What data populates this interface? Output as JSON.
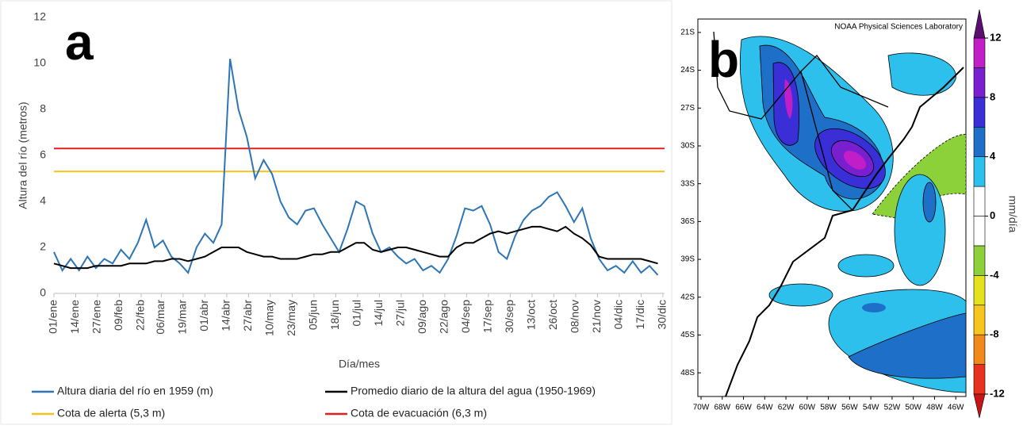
{
  "chart_data": [
    {
      "type": "line",
      "panel_label": "a",
      "x_label": "Día/mes",
      "y_label": "Altura del río (metros)",
      "xlim": [
        1,
        365
      ],
      "ylim": [
        0,
        12
      ],
      "yticks": [
        0,
        2,
        4,
        6,
        8,
        10,
        12
      ],
      "grid": false,
      "xticks": [
        {
          "value": 1,
          "label": "01/ene"
        },
        {
          "value": 14,
          "label": "14/ene"
        },
        {
          "value": 27,
          "label": "27/ene"
        },
        {
          "value": 40,
          "label": "09/feb"
        },
        {
          "value": 53,
          "label": "22/feb"
        },
        {
          "value": 65,
          "label": "06/mar"
        },
        {
          "value": 78,
          "label": "19/mar"
        },
        {
          "value": 91,
          "label": "01/abr"
        },
        {
          "value": 104,
          "label": "14/abr"
        },
        {
          "value": 117,
          "label": "27/abr"
        },
        {
          "value": 130,
          "label": "10/may"
        },
        {
          "value": 143,
          "label": "23/may"
        },
        {
          "value": 156,
          "label": "05/jun"
        },
        {
          "value": 169,
          "label": "18/jun"
        },
        {
          "value": 182,
          "label": "01/jul"
        },
        {
          "value": 195,
          "label": "14/jul"
        },
        {
          "value": 208,
          "label": "27/jul"
        },
        {
          "value": 221,
          "label": "09/ago"
        },
        {
          "value": 234,
          "label": "22/ago"
        },
        {
          "value": 247,
          "label": "04/sep"
        },
        {
          "value": 260,
          "label": "17/sep"
        },
        {
          "value": 273,
          "label": "30/sep"
        },
        {
          "value": 286,
          "label": "13/oct"
        },
        {
          "value": 299,
          "label": "26/oct"
        },
        {
          "value": 312,
          "label": "08/nov"
        },
        {
          "value": 325,
          "label": "21/nov"
        },
        {
          "value": 338,
          "label": "04/dic"
        },
        {
          "value": 351,
          "label": "17/dic"
        },
        {
          "value": 364,
          "label": "30/dic"
        }
      ],
      "x": [
        1,
        6,
        11,
        16,
        21,
        26,
        31,
        36,
        41,
        46,
        51,
        56,
        61,
        66,
        71,
        76,
        81,
        86,
        91,
        96,
        101,
        106,
        111,
        116,
        121,
        126,
        131,
        136,
        141,
        146,
        151,
        156,
        161,
        166,
        171,
        176,
        181,
        186,
        191,
        196,
        201,
        206,
        211,
        216,
        221,
        226,
        231,
        236,
        241,
        246,
        251,
        256,
        261,
        266,
        271,
        276,
        281,
        286,
        291,
        296,
        301,
        306,
        311,
        316,
        321,
        326,
        331,
        336,
        341,
        346,
        351,
        356,
        361
      ],
      "series": [
        {
          "name": "Altura diaria del río en 1959 (m)",
          "color": "#2e75b6",
          "values": [
            1.8,
            1.0,
            1.5,
            1.0,
            1.6,
            1.1,
            1.5,
            1.3,
            1.9,
            1.5,
            2.2,
            3.2,
            2.0,
            2.3,
            1.6,
            1.3,
            0.9,
            2.0,
            2.6,
            2.2,
            3.0,
            10.2,
            8.0,
            6.8,
            5.0,
            5.8,
            5.2,
            4.0,
            3.3,
            3.0,
            3.6,
            3.7,
            3.0,
            2.4,
            1.8,
            2.8,
            4.0,
            3.8,
            2.6,
            1.8,
            2.0,
            1.6,
            1.3,
            1.5,
            1.0,
            1.2,
            0.9,
            1.5,
            2.5,
            3.7,
            3.6,
            3.8,
            3.0,
            1.8,
            1.5,
            2.5,
            3.2,
            3.6,
            3.8,
            4.2,
            4.4,
            3.8,
            3.1,
            3.7,
            2.4,
            1.5,
            1.0,
            1.2,
            0.9,
            1.4,
            0.9,
            1.2,
            0.8
          ]
        },
        {
          "name": "Promedio diario de la altura del agua (1950-1969)",
          "color": "#000000",
          "values": [
            1.3,
            1.2,
            1.1,
            1.1,
            1.1,
            1.2,
            1.2,
            1.2,
            1.2,
            1.3,
            1.3,
            1.3,
            1.4,
            1.4,
            1.5,
            1.5,
            1.4,
            1.5,
            1.6,
            1.8,
            2.0,
            2.0,
            2.0,
            1.8,
            1.7,
            1.6,
            1.6,
            1.5,
            1.5,
            1.5,
            1.6,
            1.7,
            1.7,
            1.8,
            1.8,
            2.0,
            2.2,
            2.2,
            1.9,
            1.8,
            1.9,
            2.0,
            2.0,
            1.9,
            1.8,
            1.7,
            1.6,
            1.6,
            2.0,
            2.2,
            2.2,
            2.4,
            2.6,
            2.7,
            2.6,
            2.7,
            2.8,
            2.9,
            2.9,
            2.8,
            2.7,
            2.9,
            2.6,
            2.4,
            2.1,
            1.6,
            1.5,
            1.5,
            1.5,
            1.5,
            1.5,
            1.4,
            1.3
          ]
        }
      ],
      "reference_lines": [
        {
          "name": "Cota de alerta (5,3 m)",
          "value": 5.3,
          "color": "#f2c31f"
        },
        {
          "name": "Cota de evacuación (6,3 m)",
          "value": 6.3,
          "color": "#e02020"
        }
      ]
    },
    {
      "type": "map",
      "panel_label": "b",
      "title": "NOAA Physical Sciences Laboratory",
      "xlim": [
        -70,
        -45
      ],
      "ylim": [
        -49.5,
        -20
      ],
      "xticks": [
        {
          "value": -70,
          "label": "70W"
        },
        {
          "value": -68,
          "label": "68W"
        },
        {
          "value": -66,
          "label": "66W"
        },
        {
          "value": -64,
          "label": "64W"
        },
        {
          "value": -62,
          "label": "62W"
        },
        {
          "value": -60,
          "label": "60W"
        },
        {
          "value": -58,
          "label": "58W"
        },
        {
          "value": -56,
          "label": "56W"
        },
        {
          "value": -54,
          "label": "54W"
        },
        {
          "value": -52,
          "label": "52W"
        },
        {
          "value": -50,
          "label": "50W"
        },
        {
          "value": -48,
          "label": "48W"
        },
        {
          "value": -46,
          "label": "46W"
        }
      ],
      "yticks": [
        {
          "value": -21,
          "label": "21S"
        },
        {
          "value": -24,
          "label": "24S"
        },
        {
          "value": -27,
          "label": "27S"
        },
        {
          "value": -30,
          "label": "30S"
        },
        {
          "value": -33,
          "label": "33S"
        },
        {
          "value": -36,
          "label": "36S"
        },
        {
          "value": -39,
          "label": "39S"
        },
        {
          "value": -42,
          "label": "42S"
        },
        {
          "value": -45,
          "label": "45S"
        },
        {
          "value": -48,
          "label": "48S"
        }
      ],
      "colorbar_label": "mm/día",
      "clim": [
        -12,
        12
      ],
      "cticks": [
        12,
        8,
        4,
        0,
        -4,
        -8,
        -12
      ],
      "colors": [
        "#e8321e",
        "#f28a1a",
        "#f7c61c",
        "#e4e21e",
        "#8dd13a",
        "#ffffff",
        "#ffffff",
        "#2ec0ec",
        "#1e6fc8",
        "#3a2fd6",
        "#7a1fd0",
        "#c21ec8"
      ],
      "extend_colors": [
        "#c81414",
        "#5a0f70"
      ]
    }
  ]
}
